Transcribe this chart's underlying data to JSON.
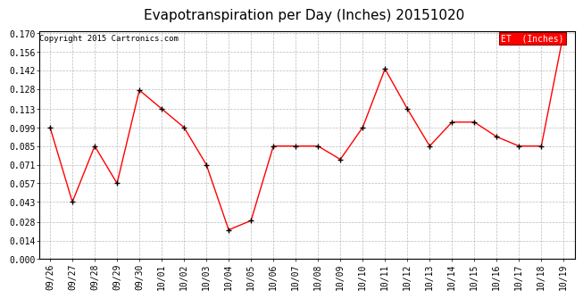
{
  "title": "Evapotranspiration per Day (Inches) 20151020",
  "copyright": "Copyright 2015 Cartronics.com",
  "legend_label": "ET  (Inches)",
  "x_labels": [
    "09/26",
    "09/27",
    "09/28",
    "09/29",
    "09/30",
    "10/01",
    "10/02",
    "10/03",
    "10/04",
    "10/05",
    "10/06",
    "10/07",
    "10/08",
    "10/09",
    "10/10",
    "10/11",
    "10/12",
    "10/13",
    "10/14",
    "10/15",
    "10/16",
    "10/17",
    "10/18",
    "10/19"
  ],
  "y_values": [
    0.099,
    0.043,
    0.085,
    0.057,
    0.127,
    0.113,
    0.099,
    0.071,
    0.022,
    0.029,
    0.085,
    0.085,
    0.085,
    0.075,
    0.099,
    0.143,
    0.113,
    0.085,
    0.103,
    0.103,
    0.092,
    0.085,
    0.085,
    0.17
  ],
  "ylim": [
    0.0,
    0.17
  ],
  "yticks": [
    0.0,
    0.014,
    0.028,
    0.043,
    0.057,
    0.071,
    0.085,
    0.099,
    0.113,
    0.128,
    0.142,
    0.156,
    0.17
  ],
  "line_color": "red",
  "marker_color": "black",
  "background_color": "white",
  "grid_color": "#aaaaaa",
  "title_fontsize": 11,
  "copyright_fontsize": 6.5,
  "tick_fontsize": 7,
  "legend_bg_color": "red",
  "legend_text_color": "white",
  "legend_fontsize": 7
}
